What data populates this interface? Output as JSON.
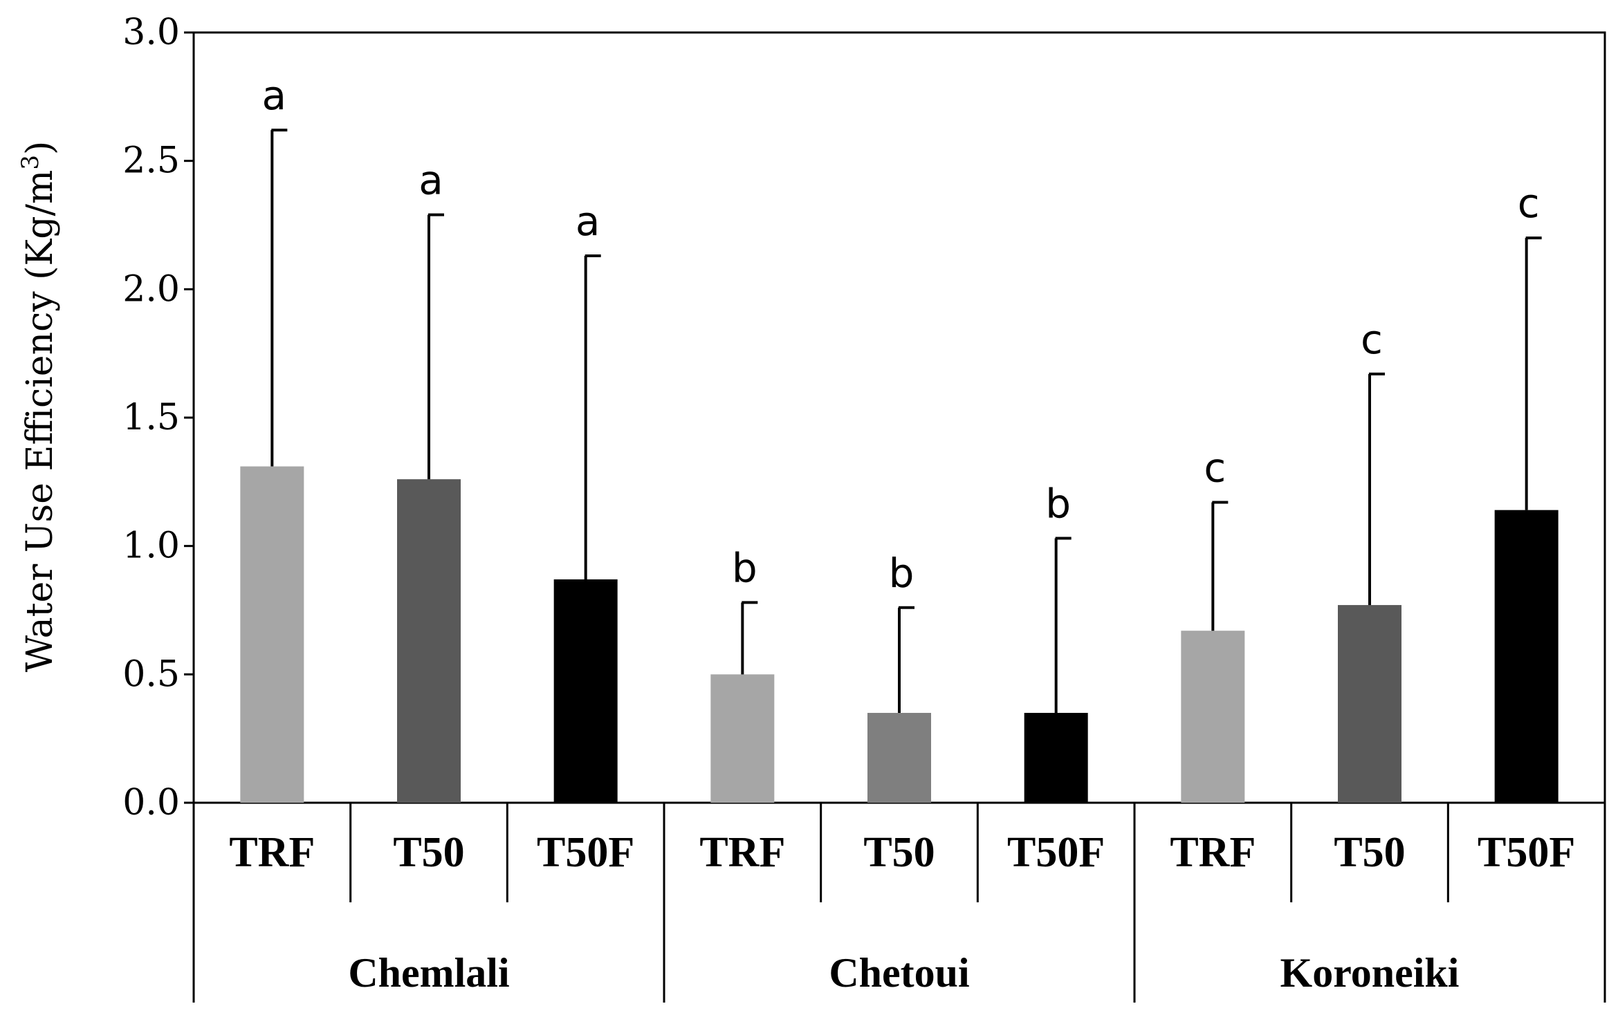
{
  "chart_data": {
    "type": "bar",
    "title": "",
    "xlabel": "",
    "ylabel": "Water Use Efficiency (Kg/m",
    "ylabel_superscript": "3",
    "ylabel_suffix": ")",
    "ylim": [
      0,
      3.0
    ],
    "yticks": [
      "0.0",
      "0.5",
      "1.0",
      "1.5",
      "2.0",
      "2.5",
      "3.0"
    ],
    "ytick_values": [
      0,
      0.5,
      1.0,
      1.5,
      2.0,
      2.5,
      3.0
    ],
    "grid": false,
    "legend": "none",
    "groups": [
      {
        "name": "Chemlali",
        "bars": [
          {
            "label": "TRF",
            "value": 1.31,
            "err_upper": 2.62,
            "letter": "a",
            "color": "#a6a6a6"
          },
          {
            "label": "T50",
            "value": 1.26,
            "err_upper": 2.29,
            "letter": "a",
            "color": "#595959"
          },
          {
            "label": "T50F",
            "value": 0.87,
            "err_upper": 2.13,
            "letter": "a",
            "color": "#000000"
          }
        ]
      },
      {
        "name": "Chetoui",
        "bars": [
          {
            "label": "TRF",
            "value": 0.5,
            "err_upper": 0.78,
            "letter": "b",
            "color": "#a6a6a6"
          },
          {
            "label": "T50",
            "value": 0.35,
            "err_upper": 0.76,
            "letter": "b",
            "color": "#7f7f7f"
          },
          {
            "label": "T50F",
            "value": 0.35,
            "err_upper": 1.03,
            "letter": "b",
            "color": "#000000"
          }
        ]
      },
      {
        "name": "Koroneiki",
        "bars": [
          {
            "label": "TRF",
            "value": 0.67,
            "err_upper": 1.17,
            "letter": "c",
            "color": "#a6a6a6"
          },
          {
            "label": "T50",
            "value": 0.77,
            "err_upper": 1.67,
            "letter": "c",
            "color": "#595959"
          },
          {
            "label": "T50F",
            "value": 1.14,
            "err_upper": 2.2,
            "letter": "c",
            "color": "#000000"
          }
        ]
      }
    ]
  }
}
